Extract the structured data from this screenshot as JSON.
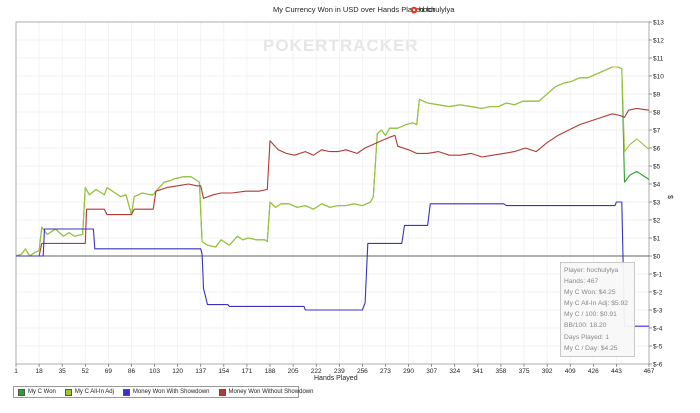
{
  "chart_data": {
    "type": "line",
    "title": "My Currency Won in USD over Hands Played for",
    "player": "hochulylya",
    "watermark": "POKERTRACKER",
    "xlabel": "Hands Played",
    "ylabel": "$",
    "xlim": [
      1,
      467
    ],
    "ylim": [
      -6,
      13
    ],
    "grid": true,
    "x_ticks": [
      1,
      18,
      35,
      52,
      69,
      86,
      103,
      120,
      137,
      154,
      171,
      188,
      205,
      222,
      239,
      256,
      273,
      290,
      307,
      324,
      341,
      358,
      375,
      392,
      409,
      426,
      443,
      467
    ],
    "y_ticks": [
      "$13",
      "$12",
      "$11",
      "$10",
      "$9",
      "$8",
      "$7",
      "$6",
      "$5",
      "$4",
      "$3",
      "$2",
      "$1",
      "$0",
      "$-1",
      "$-2",
      "$-3",
      "$-4",
      "$-5",
      "$-6"
    ],
    "series": [
      {
        "name": "My C Won",
        "color": "#2ca02c",
        "points": [
          [
            1,
            0
          ],
          [
            5,
            0.1
          ],
          [
            8,
            0.4
          ],
          [
            11,
            0
          ],
          [
            15,
            0.2
          ],
          [
            18,
            0.3
          ],
          [
            20,
            1.6
          ],
          [
            24,
            1.2
          ],
          [
            30,
            1.5
          ],
          [
            36,
            1.1
          ],
          [
            40,
            1.3
          ],
          [
            44,
            1.1
          ],
          [
            50,
            1.2
          ],
          [
            52,
            3.8
          ],
          [
            55,
            3.4
          ],
          [
            60,
            3.7
          ],
          [
            66,
            3.4
          ],
          [
            68,
            3.8
          ],
          [
            72,
            3.6
          ],
          [
            78,
            3.3
          ],
          [
            82,
            3.4
          ],
          [
            86,
            2.3
          ],
          [
            88,
            3.3
          ],
          [
            94,
            3.5
          ],
          [
            100,
            3.4
          ],
          [
            102,
            3.4
          ],
          [
            104,
            3.6
          ],
          [
            110,
            4.1
          ],
          [
            115,
            4.2
          ],
          [
            118,
            4.3
          ],
          [
            124,
            4.4
          ],
          [
            130,
            4.4
          ],
          [
            136,
            4.1
          ],
          [
            138,
            0.8
          ],
          [
            142,
            0.6
          ],
          [
            148,
            0.5
          ],
          [
            152,
            0.9
          ],
          [
            158,
            0.6
          ],
          [
            164,
            1.1
          ],
          [
            168,
            0.9
          ],
          [
            172,
            1.0
          ],
          [
            178,
            0.9
          ],
          [
            184,
            0.9
          ],
          [
            186,
            0.8
          ],
          [
            188,
            3.0
          ],
          [
            192,
            2.7
          ],
          [
            196,
            2.9
          ],
          [
            202,
            2.9
          ],
          [
            208,
            2.7
          ],
          [
            214,
            2.8
          ],
          [
            220,
            2.6
          ],
          [
            226,
            2.9
          ],
          [
            232,
            2.7
          ],
          [
            238,
            2.8
          ],
          [
            244,
            2.8
          ],
          [
            250,
            2.9
          ],
          [
            256,
            2.8
          ],
          [
            262,
            3.0
          ],
          [
            264,
            3.3
          ],
          [
            267,
            6.8
          ],
          [
            270,
            7.0
          ],
          [
            273,
            6.7
          ],
          [
            276,
            7.1
          ],
          [
            282,
            7.1
          ],
          [
            288,
            7.3
          ],
          [
            293,
            7.4
          ],
          [
            296,
            7.3
          ],
          [
            298,
            8.7
          ],
          [
            304,
            8.5
          ],
          [
            312,
            8.4
          ],
          [
            320,
            8.3
          ],
          [
            328,
            8.4
          ],
          [
            336,
            8.3
          ],
          [
            344,
            8.2
          ],
          [
            350,
            8.3
          ],
          [
            356,
            8.3
          ],
          [
            362,
            8.5
          ],
          [
            368,
            8.4
          ],
          [
            374,
            8.6
          ],
          [
            380,
            8.6
          ],
          [
            386,
            8.6
          ],
          [
            392,
            9.0
          ],
          [
            398,
            9.4
          ],
          [
            404,
            9.6
          ],
          [
            410,
            9.7
          ],
          [
            416,
            9.9
          ],
          [
            422,
            9.9
          ],
          [
            428,
            10.1
          ],
          [
            434,
            10.3
          ],
          [
            440,
            10.5
          ],
          [
            444,
            10.5
          ],
          [
            447,
            10.4
          ],
          [
            449,
            4.1
          ],
          [
            453,
            4.5
          ],
          [
            458,
            4.7
          ],
          [
            467,
            4.25
          ]
        ]
      },
      {
        "name": "My C All-In Adj",
        "color": "#9dc43a",
        "points": [
          [
            1,
            0
          ],
          [
            5,
            0.1
          ],
          [
            8,
            0.4
          ],
          [
            11,
            0
          ],
          [
            15,
            0.2
          ],
          [
            18,
            0.3
          ],
          [
            20,
            1.6
          ],
          [
            24,
            1.2
          ],
          [
            30,
            1.5
          ],
          [
            36,
            1.1
          ],
          [
            40,
            1.3
          ],
          [
            44,
            1.1
          ],
          [
            50,
            1.2
          ],
          [
            52,
            3.8
          ],
          [
            55,
            3.4
          ],
          [
            60,
            3.7
          ],
          [
            66,
            3.4
          ],
          [
            68,
            3.8
          ],
          [
            72,
            3.6
          ],
          [
            78,
            3.3
          ],
          [
            82,
            3.4
          ],
          [
            86,
            2.3
          ],
          [
            88,
            3.3
          ],
          [
            94,
            3.5
          ],
          [
            100,
            3.4
          ],
          [
            102,
            3.4
          ],
          [
            104,
            3.6
          ],
          [
            110,
            4.1
          ],
          [
            115,
            4.2
          ],
          [
            118,
            4.3
          ],
          [
            124,
            4.4
          ],
          [
            130,
            4.4
          ],
          [
            136,
            4.1
          ],
          [
            138,
            0.8
          ],
          [
            142,
            0.6
          ],
          [
            148,
            0.5
          ],
          [
            152,
            0.9
          ],
          [
            158,
            0.6
          ],
          [
            164,
            1.1
          ],
          [
            168,
            0.9
          ],
          [
            172,
            1.0
          ],
          [
            178,
            0.9
          ],
          [
            184,
            0.9
          ],
          [
            186,
            0.8
          ],
          [
            188,
            3.0
          ],
          [
            192,
            2.7
          ],
          [
            196,
            2.9
          ],
          [
            202,
            2.9
          ],
          [
            208,
            2.7
          ],
          [
            214,
            2.8
          ],
          [
            220,
            2.6
          ],
          [
            226,
            2.9
          ],
          [
            232,
            2.7
          ],
          [
            238,
            2.8
          ],
          [
            244,
            2.8
          ],
          [
            250,
            2.9
          ],
          [
            256,
            2.8
          ],
          [
            262,
            3.0
          ],
          [
            264,
            3.3
          ],
          [
            267,
            6.8
          ],
          [
            270,
            7.0
          ],
          [
            273,
            6.7
          ],
          [
            276,
            7.1
          ],
          [
            282,
            7.1
          ],
          [
            288,
            7.3
          ],
          [
            293,
            7.4
          ],
          [
            296,
            7.3
          ],
          [
            298,
            8.7
          ],
          [
            304,
            8.5
          ],
          [
            312,
            8.4
          ],
          [
            320,
            8.3
          ],
          [
            328,
            8.4
          ],
          [
            336,
            8.3
          ],
          [
            344,
            8.2
          ],
          [
            350,
            8.3
          ],
          [
            356,
            8.3
          ],
          [
            362,
            8.5
          ],
          [
            368,
            8.4
          ],
          [
            374,
            8.6
          ],
          [
            380,
            8.6
          ],
          [
            386,
            8.6
          ],
          [
            392,
            9.0
          ],
          [
            398,
            9.4
          ],
          [
            404,
            9.6
          ],
          [
            410,
            9.7
          ],
          [
            416,
            9.9
          ],
          [
            422,
            9.9
          ],
          [
            428,
            10.1
          ],
          [
            434,
            10.3
          ],
          [
            440,
            10.5
          ],
          [
            444,
            10.5
          ],
          [
            447,
            10.4
          ],
          [
            449,
            5.8
          ],
          [
            453,
            6.2
          ],
          [
            458,
            6.5
          ],
          [
            467,
            5.92
          ]
        ]
      },
      {
        "name": "Money Won With Showdown",
        "color": "#3b31c4",
        "points": [
          [
            1,
            0
          ],
          [
            21,
            0
          ],
          [
            22,
            1.5
          ],
          [
            58,
            1.5
          ],
          [
            59,
            0.4
          ],
          [
            137,
            0.4
          ],
          [
            138,
            0.1
          ],
          [
            139,
            -1.8
          ],
          [
            142,
            -2.7
          ],
          [
            157,
            -2.7
          ],
          [
            158,
            -2.8
          ],
          [
            213,
            -2.8
          ],
          [
            214,
            -3.0
          ],
          [
            256,
            -3.0
          ],
          [
            258,
            -2.6
          ],
          [
            260,
            0.7
          ],
          [
            285,
            0.7
          ],
          [
            287,
            1.7
          ],
          [
            304,
            1.7
          ],
          [
            306,
            2.9
          ],
          [
            360,
            2.9
          ],
          [
            362,
            2.8
          ],
          [
            442,
            2.8
          ],
          [
            443,
            3.0
          ],
          [
            447,
            3.0
          ],
          [
            449,
            -3.9
          ],
          [
            467,
            -3.9
          ]
        ]
      },
      {
        "name": "Money Won Without Showdown",
        "color": "#b03a36",
        "points": [
          [
            1,
            0
          ],
          [
            18,
            0
          ],
          [
            20,
            0.7
          ],
          [
            52,
            0.7
          ],
          [
            53,
            2.6
          ],
          [
            66,
            2.6
          ],
          [
            68,
            2.3
          ],
          [
            86,
            2.3
          ],
          [
            88,
            2.6
          ],
          [
            100,
            2.6
          ],
          [
            102,
            2.6
          ],
          [
            104,
            3.6
          ],
          [
            112,
            3.8
          ],
          [
            120,
            3.9
          ],
          [
            128,
            4.0
          ],
          [
            134,
            3.9
          ],
          [
            137,
            3.9
          ],
          [
            139,
            3.2
          ],
          [
            146,
            3.4
          ],
          [
            152,
            3.5
          ],
          [
            160,
            3.5
          ],
          [
            170,
            3.6
          ],
          [
            180,
            3.6
          ],
          [
            186,
            3.7
          ],
          [
            188,
            6.4
          ],
          [
            194,
            5.9
          ],
          [
            200,
            5.7
          ],
          [
            206,
            5.6
          ],
          [
            214,
            5.8
          ],
          [
            220,
            5.6
          ],
          [
            226,
            5.9
          ],
          [
            232,
            5.8
          ],
          [
            238,
            5.8
          ],
          [
            244,
            5.9
          ],
          [
            252,
            5.7
          ],
          [
            258,
            6.0
          ],
          [
            264,
            6.2
          ],
          [
            270,
            6.4
          ],
          [
            276,
            6.6
          ],
          [
            280,
            6.7
          ],
          [
            282,
            6.1
          ],
          [
            290,
            5.9
          ],
          [
            296,
            5.7
          ],
          [
            304,
            5.7
          ],
          [
            312,
            5.8
          ],
          [
            320,
            5.6
          ],
          [
            328,
            5.6
          ],
          [
            336,
            5.7
          ],
          [
            344,
            5.5
          ],
          [
            352,
            5.6
          ],
          [
            360,
            5.7
          ],
          [
            368,
            5.8
          ],
          [
            376,
            6.0
          ],
          [
            384,
            5.8
          ],
          [
            392,
            6.3
          ],
          [
            400,
            6.7
          ],
          [
            408,
            7.0
          ],
          [
            416,
            7.3
          ],
          [
            424,
            7.5
          ],
          [
            432,
            7.7
          ],
          [
            440,
            7.9
          ],
          [
            446,
            7.8
          ],
          [
            449,
            7.7
          ],
          [
            452,
            8.1
          ],
          [
            458,
            8.2
          ],
          [
            467,
            8.1
          ]
        ]
      }
    ]
  },
  "legend": [
    {
      "label": "My C Won",
      "color": "#2ca02c"
    },
    {
      "label": "My C All-In Adj",
      "color": "#9dc43a"
    },
    {
      "label": "Money Won With Showdown",
      "color": "#3b31c4"
    },
    {
      "label": "Money Won Without Showdown",
      "color": "#b03a36"
    }
  ],
  "stats": [
    "Player: hochulylya",
    "Hands: 467",
    "My C Won: $4.25",
    "My C All-In Adj: $5.92",
    "My C / 100: $0.91",
    "BB/100: 18.20",
    "Days Played: 1",
    "My C / Day: $4.25"
  ]
}
